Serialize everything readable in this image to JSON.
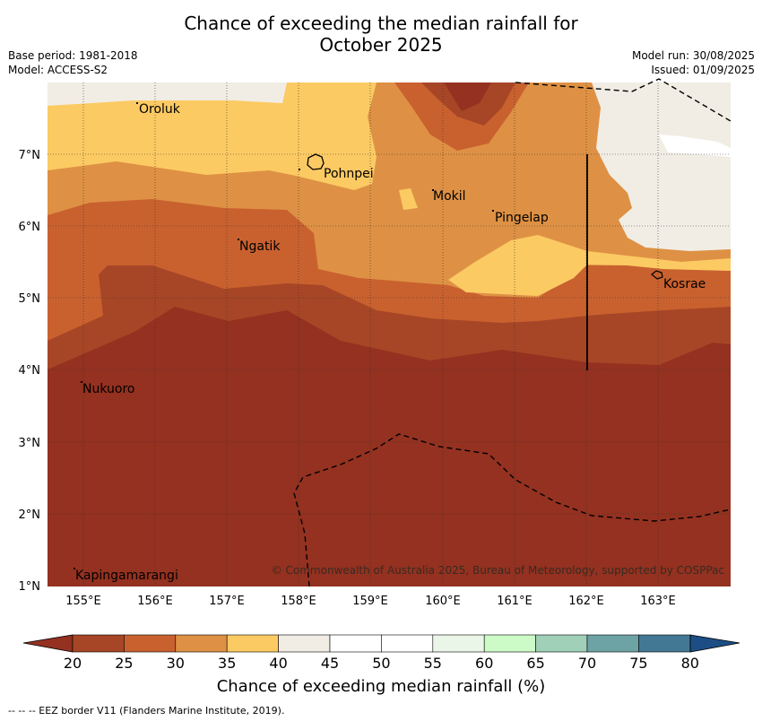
{
  "title_line1": "Chance of exceeding the median rainfall for",
  "title_line2": "October 2025",
  "base_period": "Base period: 1981-2018",
  "model": "Model: ACCESS-S2",
  "model_run": "Model run: 30/08/2025",
  "issued": "Issued: 01/09/2025",
  "copyright": "© Commonwealth of Australia 2025, Bureau of Meteorology, supported by COSPPac",
  "colorbar_label": "Chance of exceeding median rainfall (%)",
  "footer": "--  --  -- EEZ border V11 (Flanders Marine Institute, 2019).",
  "lat_labels": [
    "7°N",
    "6°N",
    "5°N",
    "4°N",
    "3°N",
    "2°N",
    "1°N"
  ],
  "lon_labels": [
    "155°E",
    "156°E",
    "157°E",
    "158°E",
    "159°E",
    "160°E",
    "161°E",
    "162°E",
    "163°E"
  ],
  "places": [
    "Oroluk",
    "Pohnpei",
    "Mokil",
    "Pingelap",
    "Ngatik",
    "Kosrae",
    "Nukuoro",
    "Kapingamarangi"
  ],
  "colorbar_ticks": [
    "20",
    "25",
    "30",
    "35",
    "40",
    "45",
    "50",
    "55",
    "60",
    "65",
    "70",
    "75",
    "80"
  ],
  "colorbar_colors": [
    "#a74626",
    "#c9612f",
    "#de9144",
    "#fcca63",
    "#f1ede5",
    "#ffffff",
    "#ffffff",
    "#eaf6e7",
    "#cdfbc8",
    "#a0d0b7",
    "#6ea3a6",
    "#437894",
    "#1c4e85"
  ],
  "colors": {
    "low_tail": "#943120",
    "high_tail": "#1c4e85"
  }
}
